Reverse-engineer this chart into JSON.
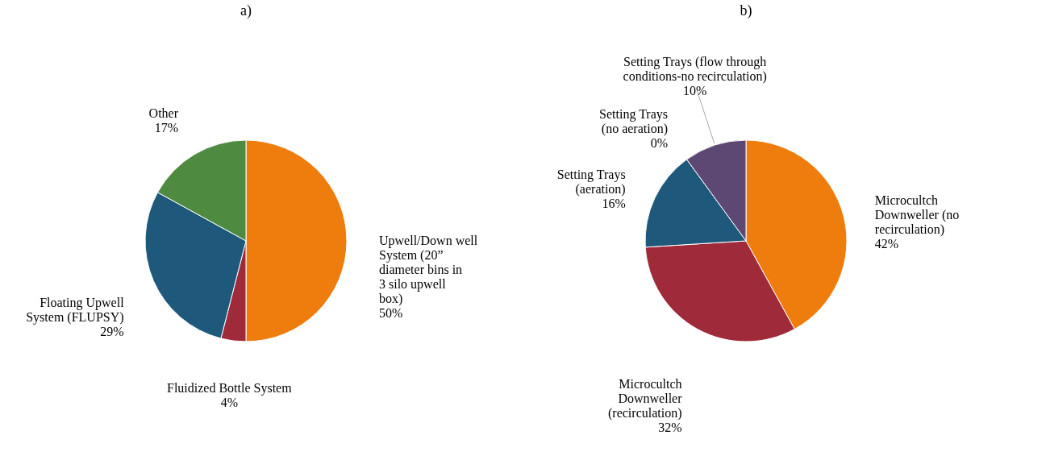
{
  "chart_data": [
    {
      "type": "pie",
      "title": "a)",
      "categories": [
        "Upwell/Down well System (20” diameter bins in 3 silo upwell box)",
        "Fluidized Bottle System",
        "Floating Upwell System (FLUPSY)",
        "Other"
      ],
      "values": [
        50,
        4,
        29,
        17
      ],
      "colors": [
        "#ee7d0e",
        "#9e2a3a",
        "#1e597b",
        "#4e8a40"
      ],
      "value_labels": [
        "50%",
        "4%",
        "29%",
        "17%"
      ]
    },
    {
      "type": "pie",
      "title": "b)",
      "categories": [
        "Microcultch Downweller (no recirculation)",
        "Microcultch Downweller (recirculation)",
        "Setting Trays (aeration)",
        "Setting Trays (no aeration)",
        "Setting Trays (flow through conditions-no recirculation)"
      ],
      "values": [
        42,
        32,
        16,
        0,
        10
      ],
      "colors": [
        "#ee7d0e",
        "#9e2a3a",
        "#1e597b",
        "#7f7f7f",
        "#5d4874"
      ],
      "value_labels": [
        "42%",
        "32%",
        "16%",
        "0%",
        "10%"
      ]
    }
  ]
}
